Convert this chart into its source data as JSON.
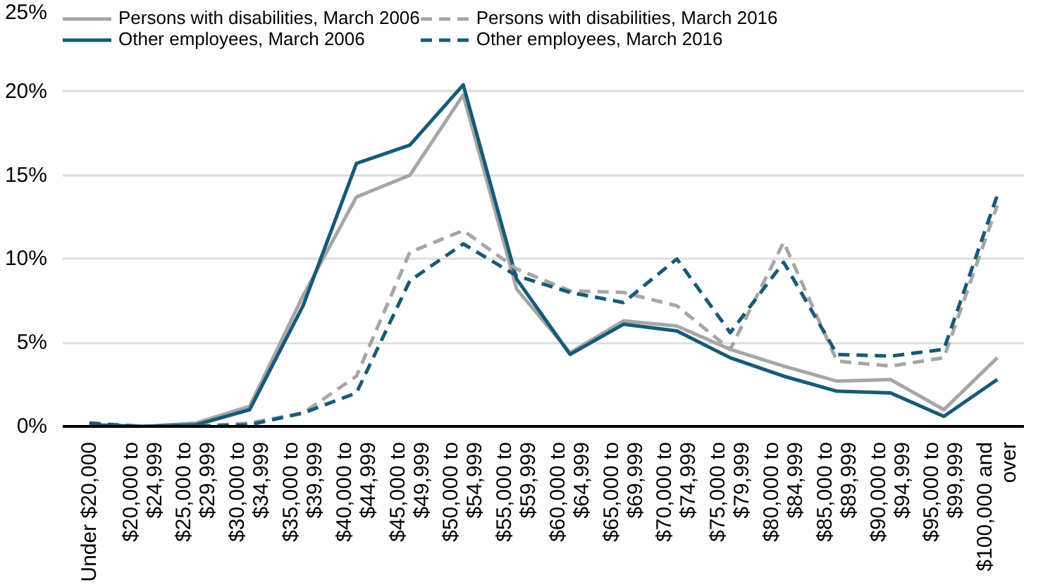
{
  "chart_data": {
    "type": "line",
    "categories": [
      "Under $20,000",
      "$20,000 to $24,999",
      "$25,000 to $29,999",
      "$30,000 to $34,999",
      "$35,000 to $39,999",
      "$40,000 to $44,999",
      "$45,000 to $49,999",
      "$50,000 to $54,999",
      "$55,000 to $59,999",
      "$60,000 to $64,999",
      "$65,000 to $69,999",
      "$70,000 to $74,999",
      "$75,000 to $79,999",
      "$80,000 to $84,999",
      "$85,000 to $89,999",
      "$90,000 to $94,999",
      "$95,000 to $99,999",
      "$100,000 and over"
    ],
    "series": [
      {
        "name": "Persons with disabilities, March 2006",
        "color": "#a6a6a6",
        "line_style": "solid",
        "values": [
          0.1,
          0,
          0.2,
          1.2,
          7.8,
          13.7,
          15.0,
          19.8,
          8.2,
          4.4,
          6.3,
          6.0,
          4.6,
          3.6,
          2.7,
          2.8,
          1.0,
          4.1
        ]
      },
      {
        "name": "Other employees, March 2006",
        "color": "#175a78",
        "line_style": "solid",
        "values": [
          0.1,
          0,
          0.1,
          1.0,
          7.2,
          15.7,
          16.8,
          20.4,
          8.8,
          4.3,
          6.1,
          5.7,
          4.1,
          3.0,
          2.1,
          2.0,
          0.6,
          2.8
        ]
      },
      {
        "name": "Persons with disabilities, March 2016",
        "color": "#a6a6a6",
        "line_style": "dashed",
        "values": [
          0.1,
          0,
          0,
          0.2,
          0.8,
          3.0,
          10.4,
          11.7,
          9.4,
          8.1,
          8.0,
          7.2,
          4.6,
          11.0,
          3.9,
          3.6,
          4.1,
          13.2
        ]
      },
      {
        "name": "Other employees, March 2016",
        "color": "#175a78",
        "line_style": "dashed",
        "values": [
          0.2,
          0,
          0,
          0.1,
          0.8,
          2.0,
          8.7,
          10.9,
          9.0,
          8.0,
          7.4,
          10.0,
          5.6,
          9.8,
          4.3,
          4.2,
          4.6,
          13.8
        ]
      }
    ],
    "ylim": [
      0,
      25
    ],
    "yticks": [
      {
        "value": 0,
        "label": "0%"
      },
      {
        "value": 5,
        "label": "5%"
      },
      {
        "value": 10,
        "label": "10%"
      },
      {
        "value": 15,
        "label": "15%"
      },
      {
        "value": 20,
        "label": "20%"
      },
      {
        "value": 25,
        "label": "25%"
      }
    ],
    "grid": "y",
    "legend": "top",
    "marker": "none"
  }
}
